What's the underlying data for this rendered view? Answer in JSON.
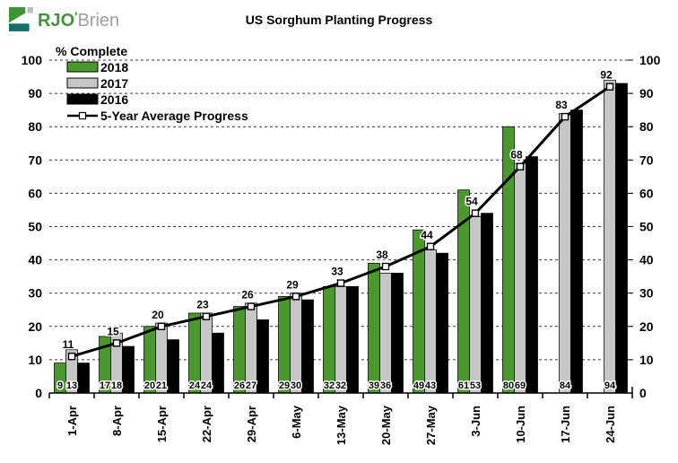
{
  "logo": {
    "primary": "RJO",
    "apostrophe": "'",
    "secondary": "Brien"
  },
  "chart_data": {
    "type": "bar",
    "title": "US Sorghum Planting Progress",
    "ylabel": "% Complete",
    "xlabel": "",
    "ylim": [
      0,
      100
    ],
    "ytick_step": 10,
    "grid": "dashed-horizontal",
    "legend_position": "top-left-inside",
    "dual_y_axis": true,
    "categories": [
      "1-Apr",
      "8-Apr",
      "15-Apr",
      "22-Apr",
      "29-Apr",
      "6-May",
      "13-May",
      "20-May",
      "27-May",
      "3-Jun",
      "10-Jun",
      "17-Jun",
      "24-Jun"
    ],
    "series": [
      {
        "name": "2018",
        "color": "#4B992C",
        "values": [
          9,
          17,
          20,
          24,
          26,
          29,
          32,
          39,
          49,
          61,
          80,
          null,
          null
        ],
        "data_labels": "base"
      },
      {
        "name": "2017",
        "color": "#C6C6C6",
        "values": [
          13,
          18,
          21,
          24,
          27,
          30,
          32,
          36,
          43,
          53,
          69,
          84,
          94
        ],
        "data_labels": "base"
      },
      {
        "name": "2016",
        "color": "#000000",
        "values": [
          9,
          14,
          16,
          18,
          22,
          28,
          32,
          36,
          42,
          54,
          71,
          85,
          93
        ],
        "data_labels": "none"
      }
    ],
    "line_series": {
      "name": "5-Year Average Progress",
      "color": "#000000",
      "marker": "open-square",
      "values": [
        11,
        15,
        20,
        23,
        26,
        29,
        33,
        38,
        44,
        54,
        68,
        83,
        92
      ],
      "data_labels": "above"
    }
  },
  "colors": {
    "grid": "#3a3a3a",
    "axis": "#000000",
    "background": "#ffffff",
    "logo_green": "#3F9533",
    "logo_teal": "#156F6B",
    "logo_gray_square": "#B9BEC4"
  }
}
